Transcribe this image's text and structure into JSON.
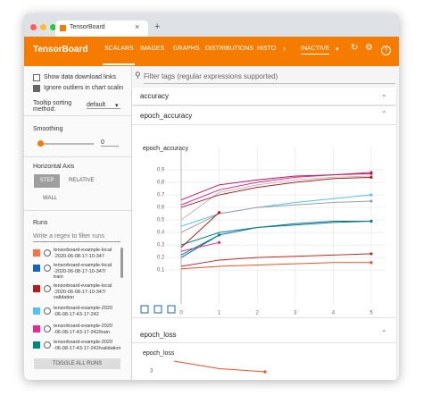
{
  "ui": {
    "tab": "TensorBoard",
    "header": {
      "title": "TensorBoard",
      "nav": [
        "SCALARS",
        "IMAGES",
        "GRAPHS",
        "DISTRIBUTIONS",
        "HISTO"
      ],
      "status": "INACTIVE"
    },
    "sidebar": {
      "options": [
        "Show data download links",
        "Ignore outliers in chart scalin"
      ],
      "tooltip_label": "Tooltip sorting method:",
      "tooltip_value": "default",
      "smoothing_label": "Smoothing",
      "smoothing_value": "0",
      "axis_label": "Horizontal Axis",
      "axis_options": [
        "STEP",
        "RELATIVE",
        "WALL"
      ],
      "runs_label": "Runs",
      "runs_filter": "Write a regex to filter runs",
      "runs": [
        "tensorboard-example-local\n-2020-06-08-17-10-347",
        "tensorboard-example-local\n-2020-06-08-17-10-347/\ntrain",
        "tensorboard-example-local\n-2020-06-08-17-10-347/\nvalidation",
        "tensorboard-example-2020\n-06-08-17-43-17-242",
        "tensorboard-example-2020\n-06-08-17-43-17-242/train",
        "tensorboard-example-2020\n-06-08-17-43-17-242/validation"
      ],
      "toggle": "TOGGLE ALL RUNS"
    },
    "main": {
      "filter": "Filter tags (regular expressions supported)",
      "groups": [
        "accuracy",
        "epoch_accuracy",
        "epoch_loss"
      ]
    }
  },
  "chart_data": [
    {
      "type": "line",
      "title": "epoch_accuracy",
      "x": [
        0,
        1,
        2,
        3,
        4,
        5
      ],
      "xlim": [
        0,
        5
      ],
      "xticks": [
        0,
        1,
        2,
        3,
        4,
        5
      ],
      "ylim": [
        -0.17,
        1.0
      ],
      "yticks": [
        0.1,
        0.2,
        0.3,
        0.4,
        0.5,
        0.6,
        0.7,
        0.8,
        0.9
      ],
      "grid": true,
      "series": [
        {
          "color": "#e7298a",
          "values": [
            0.62,
            0.74,
            0.8,
            0.84,
            0.86,
            0.88
          ]
        },
        {
          "color": "#c2185b",
          "values": [
            0.66,
            0.78,
            0.82,
            0.85,
            0.86,
            0.87
          ]
        },
        {
          "color": "#bdbdbd",
          "values": [
            0.5,
            0.72,
            0.78,
            0.82,
            0.84,
            0.85
          ]
        },
        {
          "color": "#b71c1c",
          "values": [
            0.6,
            0.7,
            0.76,
            0.8,
            0.83,
            0.84
          ]
        },
        {
          "color": "#4fc3f7",
          "values": [
            0.45,
            0.55,
            0.6,
            0.64,
            0.67,
            0.7
          ]
        },
        {
          "color": "#9e9e9e",
          "values": [
            0.4,
            0.55,
            0.6,
            0.62,
            0.64,
            0.65
          ]
        },
        {
          "color": "#1565c0",
          "values": [
            0.2,
            0.38,
            0.44,
            0.47,
            0.49,
            0.49
          ]
        },
        {
          "color": "#00897b",
          "values": [
            0.3,
            0.4,
            0.44,
            0.46,
            0.48,
            0.49
          ]
        },
        {
          "color": "#c62828",
          "values": [
            0.13,
            0.18,
            0.2,
            0.21,
            0.22,
            0.23
          ]
        },
        {
          "color": "#f4511e",
          "values": [
            0.11,
            0.13,
            0.14,
            0.15,
            0.16,
            0.16
          ]
        },
        {
          "color": "#b71c1c",
          "values": [
            0.28,
            0.56,
            null,
            null,
            null,
            null
          ]
        },
        {
          "color": "#e7298a",
          "values": [
            0.25,
            0.32,
            null,
            null,
            null,
            null
          ]
        },
        {
          "color": "#00897b",
          "values": [
            0.22,
            0.38,
            null,
            null,
            null,
            null
          ]
        }
      ]
    },
    {
      "type": "line",
      "title": "epoch_loss",
      "x": [
        0,
        1,
        2
      ],
      "xlim": [
        0,
        5
      ],
      "ylim": [
        2.5,
        3.3
      ],
      "yticks": [
        3
      ],
      "grid": false,
      "series": [
        {
          "color": "#f4511e",
          "values": [
            3.22,
            3.05,
            2.98
          ]
        }
      ]
    }
  ]
}
